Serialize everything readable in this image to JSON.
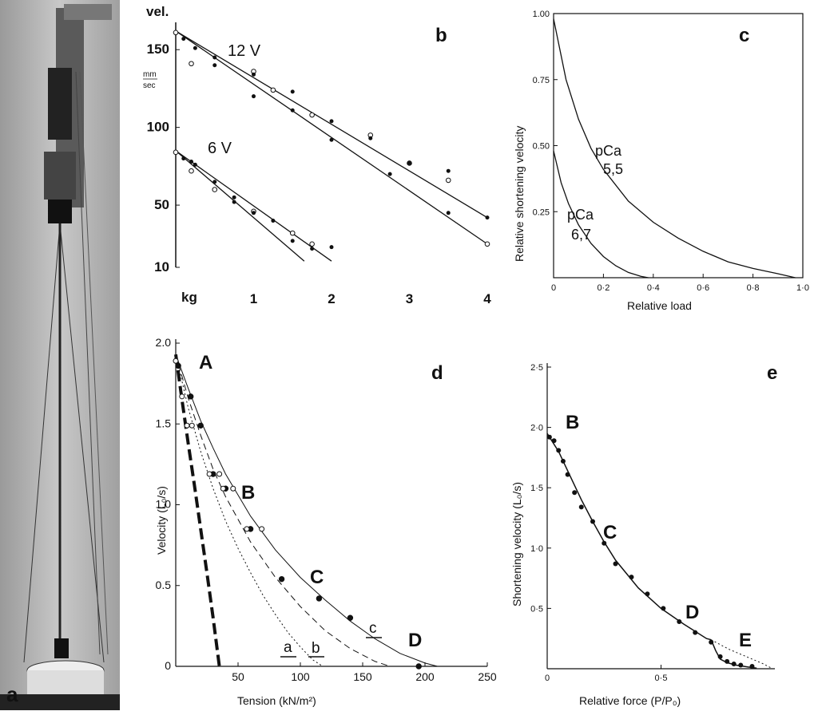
{
  "panel_labels": {
    "a": "a",
    "b": "b",
    "c": "c",
    "d": "d",
    "e": "e"
  },
  "chart_data": [
    {
      "panel": "b",
      "type": "scatter",
      "ylabel_top": "vel.",
      "ylabel_unit_num": "mm",
      "ylabel_unit_den": "sec",
      "xlabel": "kg",
      "xlim": [
        0,
        4
      ],
      "ylim": [
        10,
        165
      ],
      "x_ticks": [
        "1",
        "2",
        "3",
        "4"
      ],
      "y_ticks": [
        "10",
        "50",
        "100",
        "150"
      ],
      "annotations": [
        "12 V",
        "6 V"
      ],
      "lines": [
        {
          "name": "12 V",
          "x": [
            0,
            4
          ],
          "y": [
            162,
            42
          ]
        },
        {
          "name": "12 V",
          "x": [
            0,
            4
          ],
          "y": [
            162,
            25
          ]
        },
        {
          "name": "6 V",
          "x": [
            0,
            1.65
          ],
          "y": [
            85,
            14
          ]
        },
        {
          "name": "6 V",
          "x": [
            0,
            2.0
          ],
          "y": [
            85,
            14
          ]
        }
      ],
      "series": [
        {
          "name": "12 V",
          "points": [
            [
              0,
              161
            ],
            [
              0.1,
              157
            ],
            [
              0.25,
              151
            ],
            [
              0.2,
              141
            ],
            [
              0.5,
              145
            ],
            [
              0.5,
              140
            ],
            [
              1.0,
              136
            ],
            [
              1.0,
              134
            ],
            [
              1.0,
              120
            ],
            [
              1.25,
              124
            ],
            [
              1.5,
              123
            ],
            [
              1.5,
              111
            ],
            [
              1.75,
              108
            ],
            [
              2.0,
              104
            ],
            [
              2.0,
              92
            ],
            [
              2.5,
              95
            ],
            [
              2.5,
              93
            ],
            [
              2.75,
              70
            ],
            [
              3.0,
              77
            ],
            [
              3.0,
              77
            ],
            [
              3.5,
              72
            ],
            [
              3.5,
              66
            ],
            [
              3.5,
              45
            ],
            [
              4.0,
              42
            ],
            [
              4.0,
              25
            ]
          ]
        },
        {
          "name": "6 V",
          "points": [
            [
              0,
              84
            ],
            [
              0.1,
              80
            ],
            [
              0.2,
              78
            ],
            [
              0.2,
              72
            ],
            [
              0.25,
              76
            ],
            [
              0.5,
              65
            ],
            [
              0.5,
              60
            ],
            [
              0.75,
              55
            ],
            [
              0.75,
              52
            ],
            [
              1.0,
              46
            ],
            [
              1.0,
              45
            ],
            [
              1.25,
              40
            ],
            [
              1.5,
              32
            ],
            [
              1.5,
              27
            ],
            [
              1.75,
              22
            ],
            [
              1.75,
              25
            ],
            [
              2.0,
              23
            ]
          ]
        }
      ]
    },
    {
      "panel": "c",
      "type": "line",
      "xlabel": "Relative load",
      "ylabel": "Relative shortening velocity",
      "xlim": [
        0,
        1.0
      ],
      "ylim": [
        0,
        1.0
      ],
      "x_ticks": [
        "0",
        "0·2",
        "0·4",
        "0·6",
        "0·8",
        "1·0"
      ],
      "y_ticks": [
        "0.25",
        "0.50",
        "0.75",
        "1.00"
      ],
      "series": [
        {
          "name": "pCa 5,5",
          "x": [
            0,
            0.05,
            0.1,
            0.15,
            0.2,
            0.3,
            0.4,
            0.5,
            0.6,
            0.7,
            0.8,
            0.9,
            0.97
          ],
          "y": [
            0.98,
            0.75,
            0.6,
            0.49,
            0.41,
            0.29,
            0.21,
            0.15,
            0.1,
            0.06,
            0.035,
            0.015,
            0
          ]
        },
        {
          "name": "pCa 6,7",
          "x": [
            0,
            0.03,
            0.06,
            0.1,
            0.15,
            0.2,
            0.25,
            0.3,
            0.35,
            0.38
          ],
          "y": [
            0.48,
            0.36,
            0.28,
            0.2,
            0.13,
            0.08,
            0.045,
            0.02,
            0.005,
            0
          ]
        }
      ],
      "annotations": [
        {
          "line1": "pCa",
          "line2": "5,5"
        },
        {
          "line1": "pCa",
          "line2": "6,7"
        }
      ]
    },
    {
      "panel": "d",
      "type": "scatter",
      "xlabel": "Tension (kN/m²)",
      "ylabel": "Velocity (L₀/s)",
      "xlim": [
        0,
        250
      ],
      "ylim": [
        0,
        2.0
      ],
      "x_ticks": [
        "50",
        "100",
        "150",
        "200",
        "250"
      ],
      "y_ticks": [
        "0",
        "0.5",
        "1.0",
        "1.5",
        "2.0"
      ],
      "point_labels": [
        "A",
        "B",
        "C",
        "D"
      ],
      "curve_labels": [
        "a",
        "b",
        "c"
      ],
      "series": [
        {
          "name": "filled",
          "points": [
            [
              2,
              1.86
            ],
            [
              12,
              1.67
            ],
            [
              20,
              1.49
            ],
            [
              30,
              1.19
            ],
            [
              40,
              1.1
            ],
            [
              60,
              0.85
            ],
            [
              85,
              0.54
            ],
            [
              115,
              0.42
            ],
            [
              140,
              0.3
            ],
            [
              195,
              0.0
            ]
          ]
        },
        {
          "name": "open",
          "points": [
            [
              0,
              1.89
            ],
            [
              5,
              1.67
            ],
            [
              9,
              1.49
            ],
            [
              13,
              1.49
            ],
            [
              27,
              1.19
            ],
            [
              35,
              1.19
            ],
            [
              38,
              1.1
            ],
            [
              46,
              1.1
            ],
            [
              57,
              0.85
            ],
            [
              69,
              0.85
            ]
          ]
        }
      ],
      "curves": [
        {
          "name": "c",
          "x": [
            0,
            10,
            20,
            30,
            40,
            60,
            80,
            100,
            120,
            140,
            160,
            180,
            200,
            210
          ],
          "y": [
            1.93,
            1.72,
            1.52,
            1.35,
            1.19,
            0.93,
            0.72,
            0.55,
            0.41,
            0.28,
            0.17,
            0.08,
            0.02,
            0
          ]
        },
        {
          "name": "b",
          "x": [
            0,
            10,
            20,
            30,
            40,
            60,
            80,
            100,
            120,
            140,
            160,
            172
          ],
          "y": [
            1.93,
            1.66,
            1.43,
            1.22,
            1.05,
            0.77,
            0.55,
            0.37,
            0.22,
            0.11,
            0.03,
            0
          ]
        },
        {
          "name": "a",
          "x": [
            0,
            10,
            20,
            30,
            40,
            50,
            60,
            70,
            80,
            90,
            100,
            110,
            118
          ],
          "y": [
            1.93,
            1.6,
            1.33,
            1.1,
            0.9,
            0.73,
            0.58,
            0.44,
            0.32,
            0.21,
            0.12,
            0.04,
            0
          ]
        },
        {
          "name": "thick",
          "x": [
            0,
            5,
            10,
            15,
            20,
            25,
            30,
            35
          ],
          "y": [
            1.93,
            1.65,
            1.38,
            1.12,
            0.85,
            0.58,
            0.3,
            0
          ]
        }
      ]
    },
    {
      "panel": "e",
      "type": "line",
      "xlabel": "Relative force (P/P₀)",
      "ylabel": "Shortening velocity (L₀/s)",
      "xlim": [
        0,
        1.0
      ],
      "ylim": [
        0,
        2.5
      ],
      "x_ticks": [
        "0",
        "0·5"
      ],
      "y_ticks": [
        "0·5",
        "1·0",
        "1·5",
        "2·0",
        "2·5"
      ],
      "point_labels": [
        "B",
        "C",
        "D",
        "E"
      ],
      "series": [
        {
          "name": "data",
          "points": [
            [
              0.01,
              1.92
            ],
            [
              0.03,
              1.89
            ],
            [
              0.05,
              1.81
            ],
            [
              0.07,
              1.72
            ],
            [
              0.09,
              1.61
            ],
            [
              0.12,
              1.46
            ],
            [
              0.15,
              1.34
            ],
            [
              0.2,
              1.22
            ],
            [
              0.25,
              1.04
            ],
            [
              0.3,
              0.87
            ],
            [
              0.37,
              0.76
            ],
            [
              0.44,
              0.62
            ],
            [
              0.51,
              0.5
            ],
            [
              0.58,
              0.39
            ],
            [
              0.65,
              0.3
            ],
            [
              0.72,
              0.22
            ],
            [
              0.76,
              0.1
            ],
            [
              0.79,
              0.06
            ],
            [
              0.82,
              0.04
            ],
            [
              0.85,
              0.03
            ],
            [
              0.9,
              0.02
            ]
          ]
        }
      ],
      "curves": [
        {
          "name": "solid",
          "x": [
            0,
            0.05,
            0.1,
            0.15,
            0.2,
            0.25,
            0.3,
            0.4,
            0.5,
            0.6,
            0.7,
            0.72
          ],
          "y": [
            1.95,
            1.8,
            1.6,
            1.4,
            1.22,
            1.05,
            0.9,
            0.67,
            0.5,
            0.37,
            0.25,
            0.24
          ]
        },
        {
          "name": "solid2",
          "x": [
            0.72,
            0.74,
            0.76,
            0.79,
            0.83,
            0.88,
            0.92
          ],
          "y": [
            0.24,
            0.15,
            0.08,
            0.05,
            0.03,
            0.015,
            0.005
          ]
        },
        {
          "name": "dotted",
          "x": [
            0.72,
            0.76,
            0.8,
            0.85,
            0.9,
            0.95,
            0.99
          ],
          "y": [
            0.24,
            0.2,
            0.16,
            0.12,
            0.08,
            0.04,
            0
          ]
        }
      ]
    }
  ]
}
